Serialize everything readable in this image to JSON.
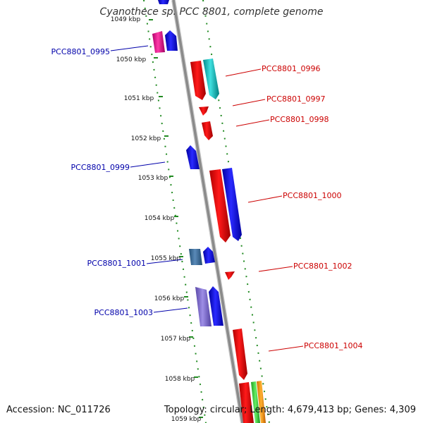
{
  "title": "Cyanothece sp. PCC 8801, complete genome",
  "footer": {
    "accession": "Accession: NC_011726",
    "summary": "Topology: circular; Length: 4,679,413 bp; Genes: 4,309"
  },
  "colors": {
    "forward_label": "#cc0000",
    "reverse_label": "#0000aa",
    "backbone": "#888888",
    "tick_dots": "#228b22"
  },
  "ticks": [
    "1049 kbp",
    "1050 kbp",
    "1051 kbp",
    "1052 kbp",
    "1053 kbp",
    "1054 kbp",
    "1055 kbp",
    "1056 kbp",
    "1057 kbp",
    "1058 kbp",
    "1059 kbp"
  ],
  "genes_forward": [
    {
      "label": "PCC8801_0996"
    },
    {
      "label": "PCC8801_0997"
    },
    {
      "label": "PCC8801_0998"
    },
    {
      "label": "PCC8801_1000"
    },
    {
      "label": "PCC8801_1002"
    },
    {
      "label": "PCC8801_1004"
    }
  ],
  "genes_reverse": [
    {
      "label": "PCC8801_0995"
    },
    {
      "label": "PCC8801_0999"
    },
    {
      "label": "PCC8801_1001"
    },
    {
      "label": "PCC8801_1003"
    }
  ]
}
